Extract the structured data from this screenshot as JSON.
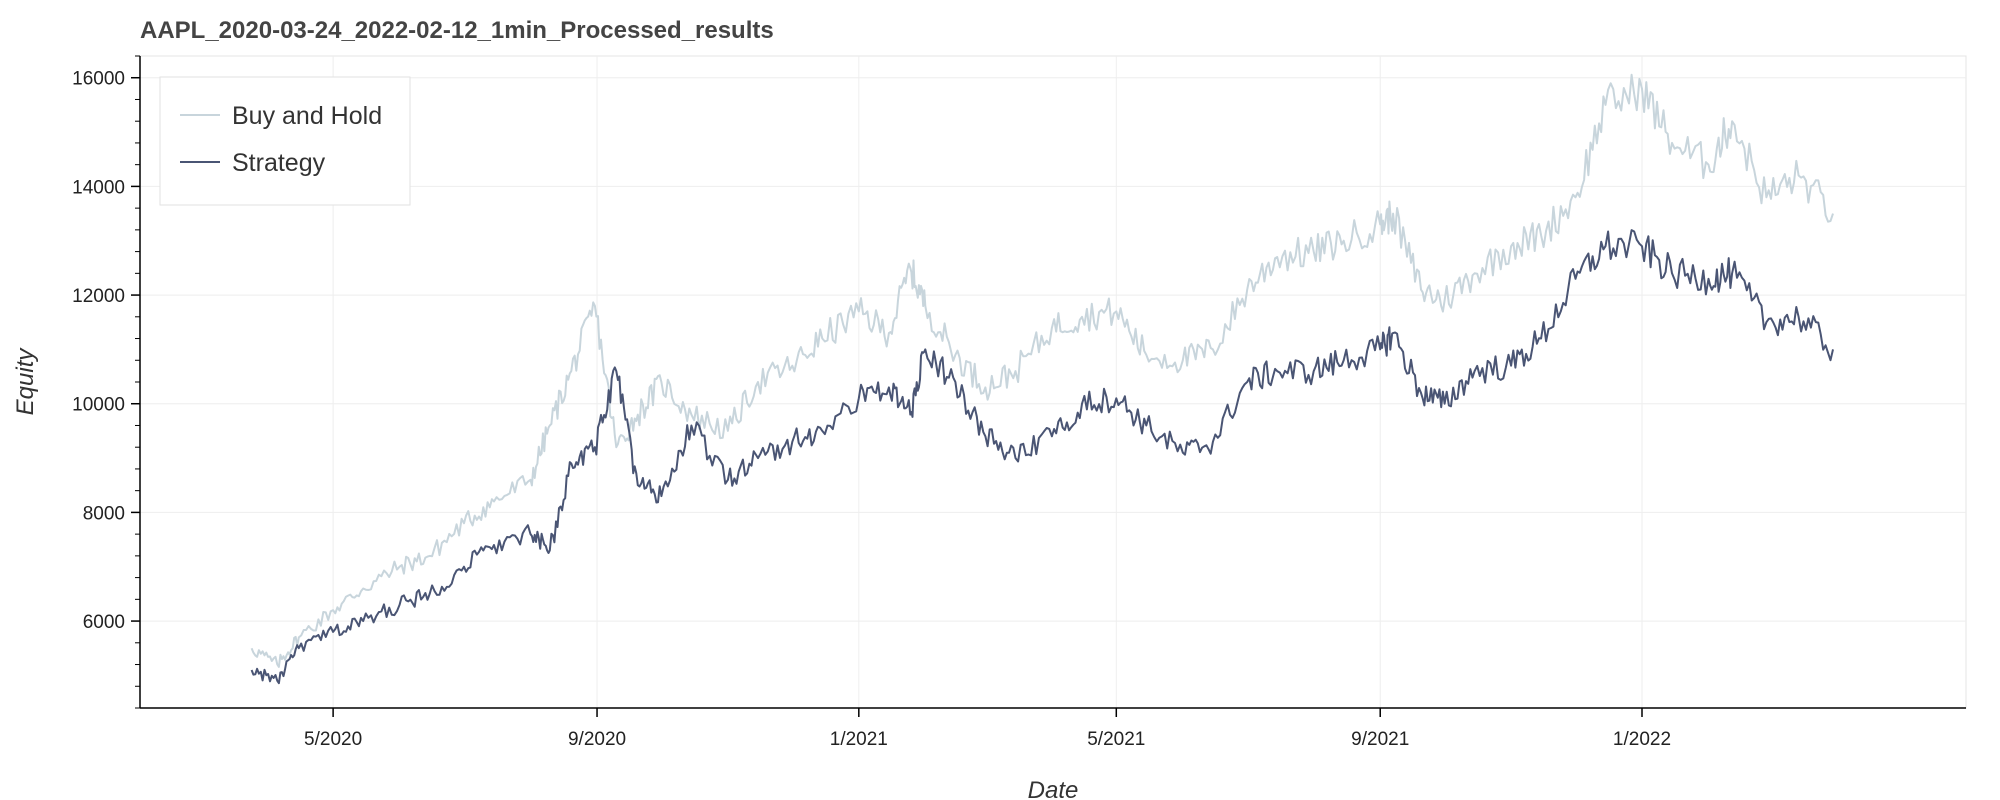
{
  "chart_data": {
    "type": "line",
    "title": "AAPL_2020-03-24_2022-02-12_1min_Processed_results",
    "xlabel": "Date",
    "ylabel": "Equity",
    "xlim": [
      "2020-02-01",
      "2022-06-01"
    ],
    "ylim": [
      4400,
      16400
    ],
    "x_ticks": [
      {
        "date": "2020-05-01",
        "label": "5/2020"
      },
      {
        "date": "2020-09-01",
        "label": "9/2020"
      },
      {
        "date": "2021-01-01",
        "label": "1/2021"
      },
      {
        "date": "2021-05-01",
        "label": "5/2021"
      },
      {
        "date": "2021-09-01",
        "label": "9/2021"
      },
      {
        "date": "2022-01-01",
        "label": "1/2022"
      }
    ],
    "y_ticks": [
      6000,
      8000,
      10000,
      12000,
      14000,
      16000
    ],
    "grid": true,
    "legend": "top-left",
    "x": [
      "2020-03-24",
      "2020-04-05",
      "2020-04-15",
      "2020-05-01",
      "2020-05-15",
      "2020-06-01",
      "2020-06-15",
      "2020-07-01",
      "2020-07-15",
      "2020-08-01",
      "2020-08-10",
      "2020-08-20",
      "2020-08-31",
      "2020-09-10",
      "2020-09-20",
      "2020-10-01",
      "2020-10-15",
      "2020-11-01",
      "2020-11-15",
      "2020-12-01",
      "2020-12-15",
      "2021-01-01",
      "2021-01-15",
      "2021-01-25",
      "2021-02-01",
      "2021-02-15",
      "2021-03-01",
      "2021-03-15",
      "2021-04-01",
      "2021-04-15",
      "2021-05-01",
      "2021-05-15",
      "2021-06-01",
      "2021-06-15",
      "2021-07-01",
      "2021-07-15",
      "2021-08-01",
      "2021-08-15",
      "2021-09-01",
      "2021-09-07",
      "2021-09-20",
      "2021-10-01",
      "2021-10-15",
      "2021-11-01",
      "2021-11-15",
      "2021-12-01",
      "2021-12-15",
      "2022-01-01",
      "2022-01-15",
      "2022-02-01",
      "2022-02-12",
      "2022-02-28",
      "2022-03-15",
      "2022-03-31"
    ],
    "series": [
      {
        "name": "Buy and Hold",
        "color": "#c8d5dc",
        "values": [
          5500,
          5200,
          5700,
          6200,
          6600,
          7000,
          7200,
          7800,
          8200,
          8600,
          9600,
          10600,
          11800,
          9200,
          9800,
          10400,
          9800,
          9500,
          10400,
          10700,
          11200,
          11700,
          11300,
          12500,
          11800,
          10900,
          10300,
          10600,
          11400,
          11600,
          11700,
          10900,
          10800,
          11000,
          12100,
          12700,
          12800,
          13000,
          13300,
          13500,
          12100,
          11900,
          12400,
          12900,
          13100,
          13800,
          15500,
          15800,
          14800,
          14400,
          15200,
          13800,
          14200,
          13500
        ]
      },
      {
        "name": "Strategy",
        "color": "#4a5574",
        "values": [
          5100,
          4900,
          5500,
          5800,
          6000,
          6300,
          6500,
          7000,
          7400,
          7600,
          7300,
          8900,
          9200,
          10600,
          8500,
          8300,
          9600,
          8600,
          9000,
          9300,
          9500,
          10100,
          10300,
          9800,
          11000,
          10400,
          9400,
          9000,
          9400,
          10000,
          10100,
          9600,
          9100,
          9300,
          10400,
          10600,
          10600,
          10800,
          11000,
          11300,
          10200,
          10000,
          10600,
          10700,
          11200,
          12300,
          12900,
          12900,
          12400,
          12300,
          12400,
          11500,
          11600,
          11000
        ]
      }
    ]
  }
}
